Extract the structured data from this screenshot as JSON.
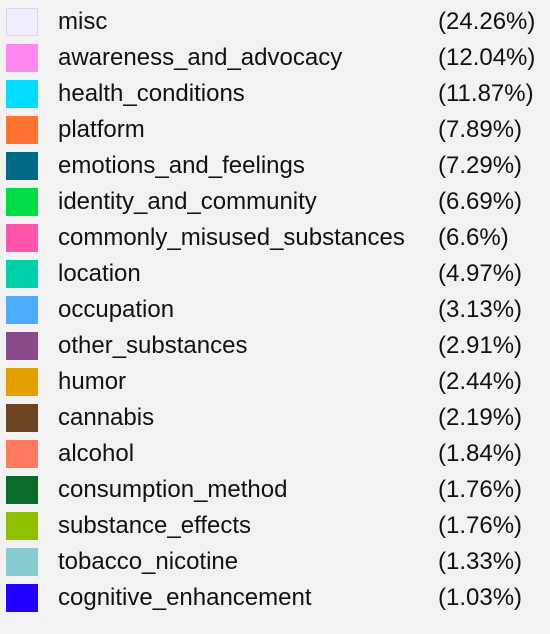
{
  "chart_data": {
    "type": "pie",
    "legend_placement": "full-panel list",
    "categories": [
      "misc",
      "awareness_and_advocacy",
      "health_conditions",
      "platform",
      "emotions_and_feelings",
      "identity_and_community",
      "commonly_misused_substances",
      "location",
      "occupation",
      "other_substances",
      "humor",
      "cannabis",
      "alcohol",
      "consumption_method",
      "substance_effects",
      "tobacco_nicotine",
      "cognitive_enhancement"
    ],
    "values": [
      24.26,
      12.04,
      11.87,
      7.89,
      7.29,
      6.69,
      6.6,
      4.97,
      3.13,
      2.91,
      2.44,
      2.19,
      1.84,
      1.76,
      1.76,
      1.33,
      1.03
    ],
    "value_labels": [
      "(24.26%)",
      "(12.04%)",
      "(11.87%)",
      "(7.89%)",
      "(7.29%)",
      "(6.69%)",
      "(6.6%)",
      "(4.97%)",
      "(3.13%)",
      "(2.91%)",
      "(2.44%)",
      "(2.19%)",
      "(1.84%)",
      "(1.76%)",
      "(1.76%)",
      "(1.33%)",
      "(1.03%)"
    ],
    "colors": [
      "#efeefa",
      "#ff88f0",
      "#00ddff",
      "#ff7230",
      "#006a86",
      "#00dd44",
      "#ff55aa",
      "#00cfa8",
      "#4dacff",
      "#884a88",
      "#e5a000",
      "#6c4422",
      "#ff7a5e",
      "#0b6a2b",
      "#8fbf00",
      "#88cbd0",
      "#2200ff"
    ],
    "unit": "%"
  }
}
